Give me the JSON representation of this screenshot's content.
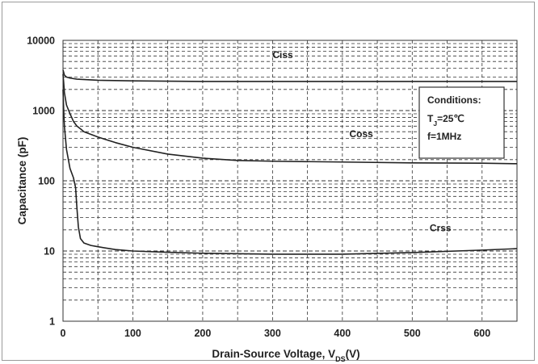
{
  "chart_data": {
    "type": "line",
    "xlabel": "Drain-Source Voltage, V",
    "xlabel_subscript": "DS",
    "xlabel_suffix": "(V)",
    "ylabel": "Capacitance  (pF)",
    "xlim": [
      0,
      650
    ],
    "ylim": [
      1,
      10000
    ],
    "y_scale": "log",
    "grid": true,
    "x_ticks": [
      "0",
      "100",
      "200",
      "300",
      "400",
      "500",
      "600"
    ],
    "y_ticks": [
      "1",
      "10",
      "100",
      "1000",
      "10000"
    ],
    "series": [
      {
        "name": "Ciss",
        "color": "#222222",
        "x": [
          0,
          1,
          2,
          5,
          10,
          20,
          50,
          100,
          200,
          300,
          400,
          500,
          600,
          650
        ],
        "y": [
          3800,
          3500,
          3200,
          3000,
          2900,
          2800,
          2700,
          2650,
          2600,
          2600,
          2600,
          2600,
          2600,
          2600
        ]
      },
      {
        "name": "Coss",
        "color": "#222222",
        "x": [
          0,
          1,
          2,
          5,
          10,
          15,
          20,
          25,
          30,
          50,
          75,
          100,
          150,
          200,
          250,
          300,
          400,
          500,
          600,
          650
        ],
        "y": [
          3300,
          2500,
          1800,
          1200,
          900,
          700,
          600,
          550,
          500,
          420,
          350,
          300,
          240,
          210,
          195,
          190,
          185,
          180,
          178,
          175
        ]
      },
      {
        "name": "Crss",
        "color": "#222222",
        "x": [
          0,
          1,
          2,
          5,
          10,
          15,
          18,
          20,
          22,
          25,
          30,
          40,
          50,
          75,
          100,
          150,
          200,
          300,
          400,
          500,
          600,
          650
        ],
        "y": [
          2000,
          1000,
          600,
          280,
          150,
          110,
          80,
          40,
          22,
          15,
          13,
          12,
          11.5,
          10.5,
          10,
          9.6,
          9.3,
          9,
          9,
          9.5,
          10.3,
          10.8
        ]
      }
    ],
    "legend": {
      "title": "Conditions:",
      "lines": [
        {
          "main": "T",
          "sub": "J",
          "rest": "=25℃"
        },
        {
          "main": "f=1MHz",
          "sub": "",
          "rest": ""
        }
      ]
    }
  }
}
